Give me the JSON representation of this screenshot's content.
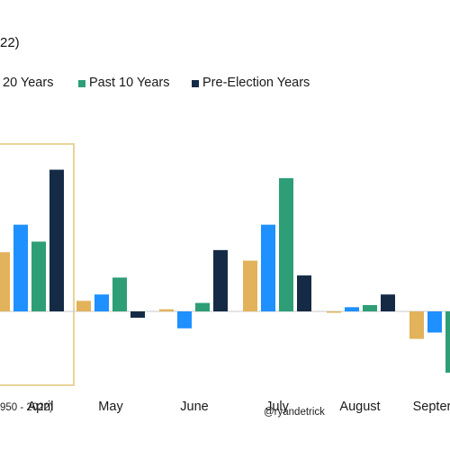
{
  "header": {
    "title_fragment": "22)",
    "source_fragment": "950 - 2022)",
    "handle": "@ryandetrick"
  },
  "legend": {
    "items": [
      {
        "label": "20 Years",
        "color": "#E2B35B"
      },
      {
        "label": "Past 10 Years",
        "color": "#2E9E77"
      },
      {
        "label": "Pre-Election Years",
        "color": "#152B45"
      }
    ]
  },
  "colors": {
    "highlight_box": "#E8D49A",
    "baseline": "#C9C9C9"
  },
  "chart_data": {
    "type": "bar",
    "title": "",
    "xlabel": "",
    "ylabel": "",
    "ylim": [
      -3.0,
      6.5
    ],
    "grid": false,
    "legend_position": "top",
    "highlight_category": "April",
    "categories": [
      "April",
      "May",
      "June",
      "July",
      "August",
      "Septer"
    ],
    "series": [
      {
        "name": "20 Years",
        "color": "#E2B35B",
        "values": [
          2.8,
          0.5,
          0.1,
          2.4,
          0.0,
          -1.3
        ]
      },
      {
        "name": "",
        "color": "#1E90FF",
        "values": [
          4.1,
          0.8,
          -0.8,
          4.1,
          0.2,
          -1.0
        ]
      },
      {
        "name": "Past 10 Years",
        "color": "#2E9E77",
        "values": [
          3.3,
          1.6,
          0.4,
          6.3,
          0.3,
          -2.9
        ]
      },
      {
        "name": "Pre-Election Years",
        "color": "#152B45",
        "values": [
          6.7,
          -0.3,
          2.9,
          1.7,
          0.8,
          null
        ]
      }
    ]
  }
}
